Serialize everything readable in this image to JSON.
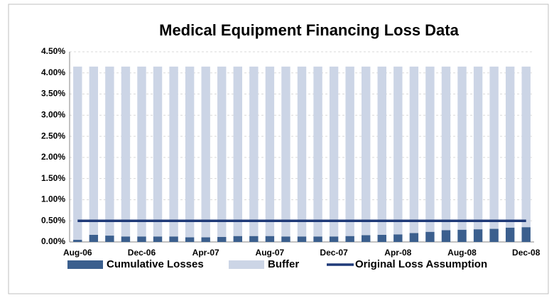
{
  "chart_data": {
    "type": "bar",
    "stacked": true,
    "title": "Medical Equipment Financing Loss Data",
    "categories": [
      "Aug-06",
      null,
      null,
      null,
      "Dec-06",
      null,
      null,
      null,
      "Apr-07",
      null,
      null,
      null,
      "Aug-07",
      null,
      null,
      null,
      "Dec-07",
      null,
      null,
      null,
      "Apr-08",
      null,
      null,
      null,
      "Aug-08",
      null,
      null,
      null,
      "Dec-08"
    ],
    "series": [
      {
        "name": "Cumulative Losses",
        "color": "#3b5f8e",
        "values": [
          0.05,
          0.17,
          0.15,
          0.13,
          0.13,
          0.13,
          0.13,
          0.11,
          0.11,
          0.12,
          0.14,
          0.14,
          0.14,
          0.13,
          0.13,
          0.13,
          0.13,
          0.14,
          0.16,
          0.17,
          0.18,
          0.21,
          0.24,
          0.28,
          0.29,
          0.3,
          0.31,
          0.34,
          0.35
        ]
      },
      {
        "name": "Buffer",
        "color": "#ccd5e6",
        "values": [
          4.1,
          3.98,
          4.0,
          4.02,
          4.02,
          4.02,
          4.02,
          4.04,
          4.04,
          4.03,
          4.01,
          4.01,
          4.01,
          4.02,
          4.02,
          4.02,
          4.02,
          4.01,
          3.99,
          3.98,
          3.97,
          3.94,
          3.91,
          3.87,
          3.86,
          3.85,
          3.84,
          3.81,
          3.8
        ]
      },
      {
        "name": "Original Loss Assumption",
        "type": "line",
        "color": "#1f3a78",
        "values": [
          0.5,
          0.5,
          0.5,
          0.5,
          0.5,
          0.5,
          0.5,
          0.5,
          0.5,
          0.5,
          0.5,
          0.5,
          0.5,
          0.5,
          0.5,
          0.5,
          0.5,
          0.5,
          0.5,
          0.5,
          0.5,
          0.5,
          0.5,
          0.5,
          0.5,
          0.5,
          0.5,
          0.5,
          0.5
        ]
      }
    ],
    "ylim": [
      0,
      4.5
    ],
    "yticks": [
      {
        "value": 0,
        "label": "0.00%"
      },
      {
        "value": 0.5,
        "label": "0.50%"
      },
      {
        "value": 1,
        "label": "1.00%"
      },
      {
        "value": 1.5,
        "label": "1.50%"
      },
      {
        "value": 2,
        "label": "2.00%"
      },
      {
        "value": 2.5,
        "label": "2.50%"
      },
      {
        "value": 3,
        "label": "3.00%"
      },
      {
        "value": 3.5,
        "label": "3.50%"
      },
      {
        "value": 4,
        "label": "4.00%"
      },
      {
        "value": 4.5,
        "label": "4.50%"
      }
    ],
    "grid": true,
    "legend": "bottom"
  }
}
